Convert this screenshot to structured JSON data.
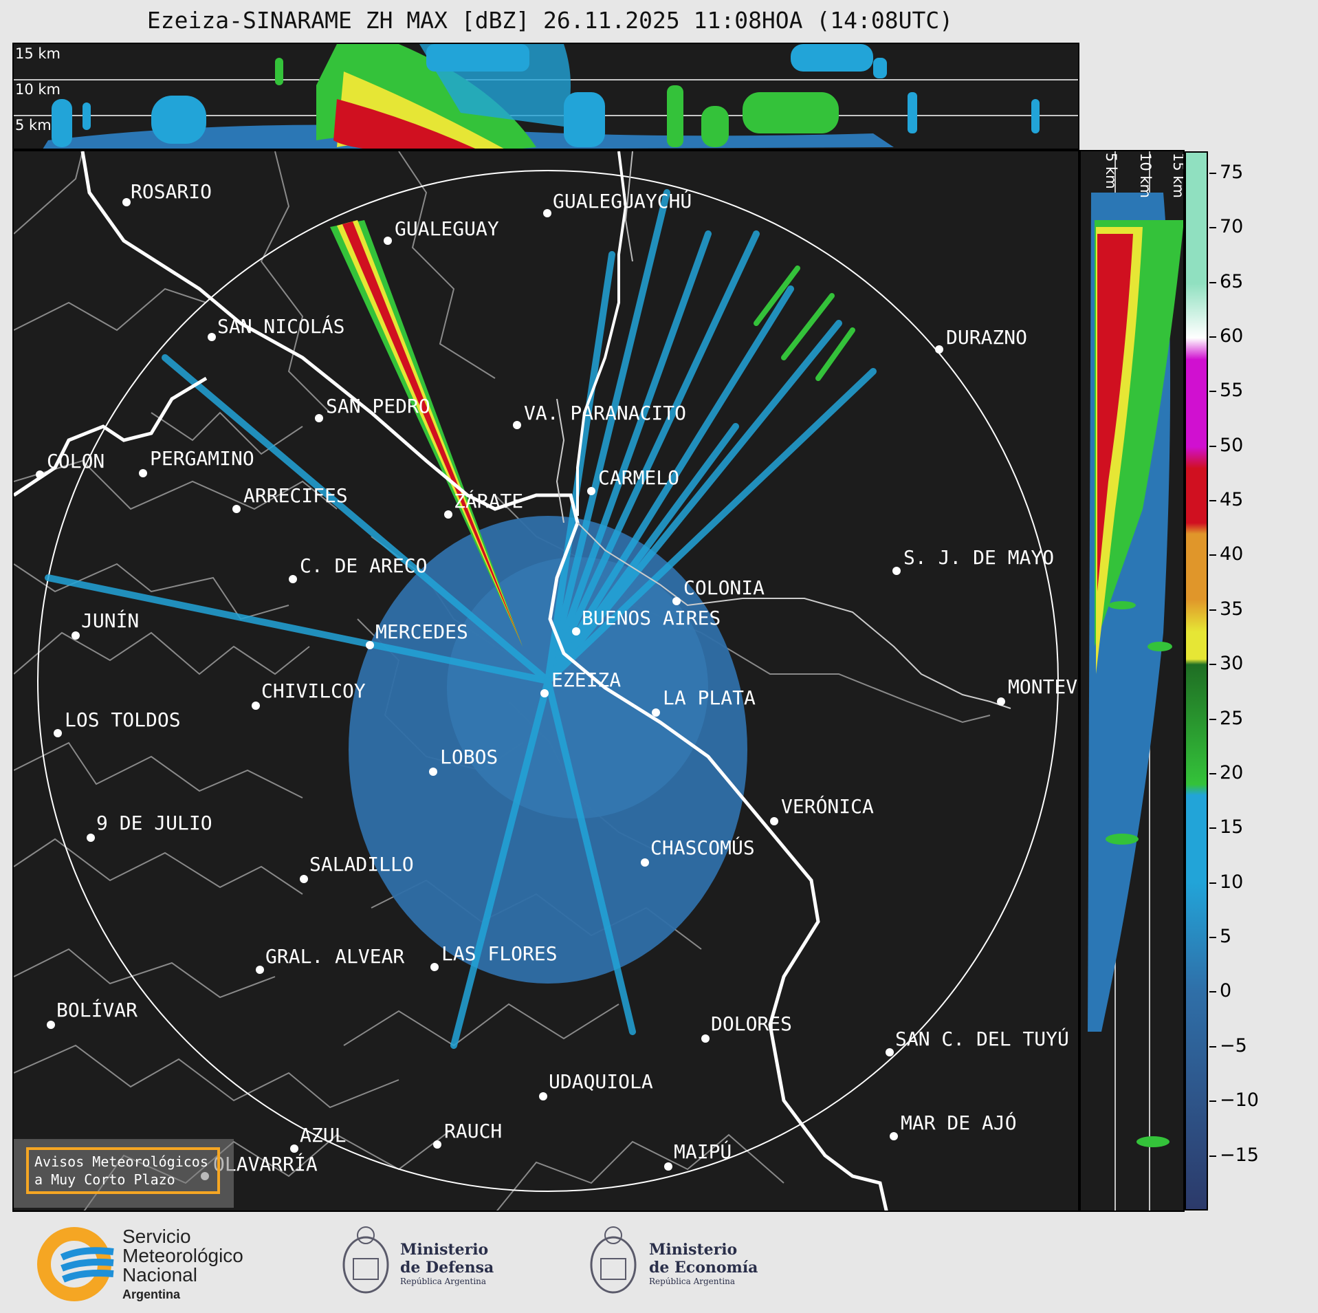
{
  "title": "Ezeiza-SINARAME ZH MAX [dBZ] 26.11.2025 11:08HOA (14:08UTC)",
  "top_panel": {
    "height_labels": [
      "15 km",
      "10 km",
      "5 km"
    ]
  },
  "side_panel": {
    "height_labels": [
      "5 km",
      "10 km",
      "15 km"
    ]
  },
  "cities": [
    {
      "name": "ROSARIO"
    },
    {
      "name": "GUALEGUAYCHÚ"
    },
    {
      "name": "GUALEGUAY"
    },
    {
      "name": "SAN NICOLÁS"
    },
    {
      "name": "DURAZNO"
    },
    {
      "name": "SAN PEDRO"
    },
    {
      "name": "VA. PARANACITO"
    },
    {
      "name": "COLON"
    },
    {
      "name": "PERGAMINO"
    },
    {
      "name": "CARMELO"
    },
    {
      "name": "ARRECIFES"
    },
    {
      "name": "ZÁRATE"
    },
    {
      "name": "S. J. DE MAYO"
    },
    {
      "name": "C. DE ARECO"
    },
    {
      "name": "COLONIA"
    },
    {
      "name": "JUNÍN"
    },
    {
      "name": "BUENOS AIRES"
    },
    {
      "name": "MERCEDES"
    },
    {
      "name": "EZEIZA"
    },
    {
      "name": "MONTEV"
    },
    {
      "name": "CHIVILCOY"
    },
    {
      "name": "LA PLATA"
    },
    {
      "name": "LOS TOLDOS"
    },
    {
      "name": "LOBOS"
    },
    {
      "name": "VERÓNICA"
    },
    {
      "name": "9 DE JULIO"
    },
    {
      "name": "CHASCOMÚS"
    },
    {
      "name": "SALADILLO"
    },
    {
      "name": "GRAL. ALVEAR"
    },
    {
      "name": "LAS FLORES"
    },
    {
      "name": "BOLÍVAR"
    },
    {
      "name": "DOLORES"
    },
    {
      "name": "SAN C. DEL TUYÚ"
    },
    {
      "name": "UDAQUIOLA"
    },
    {
      "name": "AZUL"
    },
    {
      "name": "RAUCH"
    },
    {
      "name": "MAR DE AJÓ"
    },
    {
      "name": "OLAVARRÍA"
    },
    {
      "name": "MAIPÚ"
    }
  ],
  "avisos": {
    "line1": "Avisos Meteorológicos",
    "line2": "a Muy Corto Plazo"
  },
  "colorbar": {
    "unit": "dBZ",
    "range": [
      -20,
      77
    ],
    "ticks": [
      "75",
      "70",
      "65",
      "60",
      "55",
      "50",
      "45",
      "40",
      "35",
      "30",
      "25",
      "20",
      "15",
      "10",
      "5",
      "0",
      "−5",
      "−10",
      "−15"
    ],
    "tick_values": [
      75,
      70,
      65,
      60,
      55,
      50,
      45,
      40,
      35,
      30,
      25,
      20,
      15,
      10,
      5,
      0,
      -5,
      -10,
      -15
    ],
    "colors": {
      "below_15": "#2f6fa8",
      "15_30": "#22a4d8",
      "greens": "#34c23a",
      "yellow": "#e6e635",
      "orange": "#e0962a",
      "red": "#d01020",
      "magenta": "#d010d0",
      "white": "#ffffff",
      "aqua": "#90e0c0"
    }
  },
  "logos": {
    "smn": {
      "line1": "Servicio",
      "line2": "Meteorológico",
      "line3": "Nacional",
      "line4": "Argentina"
    },
    "defensa": {
      "line1": "Ministerio",
      "line2": "de Defensa",
      "line3": "República Argentina"
    },
    "economia": {
      "line1": "Ministerio",
      "line2": "de Economía",
      "line3": "República Argentina"
    }
  }
}
